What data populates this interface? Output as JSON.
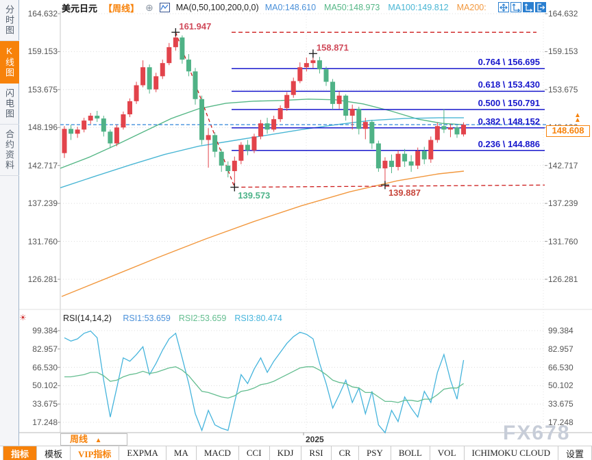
{
  "header": {
    "symbol": "美元日元",
    "period_tag": "【周线】",
    "ma_label": "MA(0,50,100,200,0,0)",
    "ma_values": [
      {
        "label": "MA0:148.610",
        "color": "#4a90d9"
      },
      {
        "label": "MA50:148.973",
        "color": "#55b786"
      },
      {
        "label": "MA100:149.812",
        "color": "#49b6d4"
      },
      {
        "label": "MA200:",
        "color": "#f2983e"
      }
    ],
    "window_buttons": [
      "pan-tool-button",
      "axis-range-button",
      "axis-scale-button",
      "close-panel-button"
    ]
  },
  "icons": {
    "add_indicator": "⊕",
    "rsi_marker": "☀",
    "up_arrow": "▲"
  },
  "sidebar": {
    "items": [
      {
        "label": "分时图",
        "active": false
      },
      {
        "label": "K线图",
        "active": true
      },
      {
        "label": "闪电图",
        "active": false
      },
      {
        "label": "合约资料",
        "active": false
      }
    ]
  },
  "colors": {
    "accent_orange": "#f7820a",
    "candle_up": "#e2434b",
    "candle_down": "#4fb286",
    "fib_blue": "#1717cc",
    "price_dash_blue": "#2f86d8",
    "drawing_red": "#cc1a1a"
  },
  "chart_data": {
    "type": "candlestick",
    "symbol": "美元日元",
    "period": "周线",
    "price_axis": {
      "ticks": [
        164.632,
        159.153,
        153.675,
        148.196,
        142.717,
        137.239,
        131.76,
        126.281
      ]
    },
    "x_axis": {
      "year_label": "2025"
    },
    "candles": [
      [
        144.5,
        148.4,
        143.8,
        148.0
      ],
      [
        148.0,
        148.6,
        146.4,
        147.3
      ],
      [
        147.3,
        148.3,
        146.7,
        147.9
      ],
      [
        147.9,
        149.6,
        147.5,
        149.2
      ],
      [
        149.2,
        150.3,
        148.7,
        149.9
      ],
      [
        149.9,
        150.6,
        149.0,
        149.5
      ],
      [
        149.5,
        149.9,
        146.9,
        147.6
      ],
      [
        147.6,
        147.9,
        145.2,
        145.9
      ],
      [
        145.9,
        148.6,
        145.5,
        148.2
      ],
      [
        148.2,
        150.5,
        147.9,
        150.1
      ],
      [
        150.1,
        152.4,
        149.7,
        152.0
      ],
      [
        152.0,
        154.8,
        151.6,
        154.3
      ],
      [
        154.3,
        157.9,
        154.0,
        156.9
      ],
      [
        156.9,
        157.3,
        153.1,
        153.7
      ],
      [
        153.7,
        156.1,
        153.3,
        155.6
      ],
      [
        155.6,
        158.0,
        155.2,
        157.5
      ],
      [
        157.5,
        160.4,
        157.2,
        159.8
      ],
      [
        159.8,
        161.947,
        159.3,
        161.2
      ],
      [
        161.2,
        161.5,
        157.4,
        158.0
      ],
      [
        158.0,
        158.8,
        155.6,
        156.3
      ],
      [
        156.3,
        156.8,
        151.5,
        152.3
      ],
      [
        152.3,
        152.8,
        145.7,
        146.4
      ],
      [
        146.4,
        148.1,
        142.4,
        147.1
      ],
      [
        147.1,
        147.5,
        143.9,
        144.7
      ],
      [
        144.7,
        145.1,
        141.8,
        142.7
      ],
      [
        142.7,
        143.3,
        141.0,
        141.9
      ],
      [
        141.9,
        144.0,
        139.573,
        143.4
      ],
      [
        143.4,
        146.1,
        142.9,
        145.7
      ],
      [
        145.7,
        146.4,
        144.2,
        144.9
      ],
      [
        144.9,
        147.3,
        144.5,
        146.9
      ],
      [
        146.9,
        149.3,
        146.5,
        148.8
      ],
      [
        148.8,
        149.6,
        147.3,
        147.9
      ],
      [
        147.9,
        149.9,
        147.6,
        149.4
      ],
      [
        149.4,
        151.4,
        149.0,
        151.0
      ],
      [
        151.0,
        153.3,
        150.6,
        152.9
      ],
      [
        152.9,
        155.4,
        152.5,
        154.9
      ],
      [
        154.9,
        157.6,
        154.6,
        156.9
      ],
      [
        156.9,
        158.3,
        156.3,
        157.5
      ],
      [
        157.5,
        158.871,
        156.8,
        157.9
      ],
      [
        157.9,
        158.4,
        156.0,
        156.6
      ],
      [
        156.6,
        157.0,
        154.2,
        154.8
      ],
      [
        154.8,
        155.2,
        150.8,
        151.6
      ],
      [
        151.6,
        153.4,
        150.9,
        152.8
      ],
      [
        152.8,
        153.0,
        149.2,
        149.9
      ],
      [
        149.9,
        151.5,
        147.9,
        150.9
      ],
      [
        150.9,
        151.2,
        147.2,
        148.0
      ],
      [
        148.0,
        149.6,
        146.5,
        149.0
      ],
      [
        149.0,
        149.3,
        145.1,
        145.9
      ],
      [
        145.9,
        146.3,
        141.8,
        142.3
      ],
      [
        142.3,
        143.9,
        139.887,
        143.4
      ],
      [
        143.4,
        144.3,
        141.6,
        142.5
      ],
      [
        142.5,
        144.9,
        142.0,
        144.4
      ],
      [
        144.4,
        145.1,
        142.5,
        143.3
      ],
      [
        143.3,
        144.2,
        141.8,
        142.7
      ],
      [
        142.7,
        145.3,
        142.2,
        144.8
      ],
      [
        144.8,
        145.4,
        142.9,
        143.6
      ],
      [
        143.6,
        146.9,
        143.1,
        146.4
      ],
      [
        146.4,
        148.9,
        146.0,
        148.4
      ],
      [
        148.4,
        150.9,
        147.4,
        147.9
      ],
      [
        147.9,
        148.7,
        146.8,
        148.2
      ],
      [
        148.2,
        148.5,
        146.7,
        147.2
      ],
      [
        147.2,
        148.95,
        146.9,
        148.608
      ]
    ],
    "moving_averages": [
      {
        "name": "MA50",
        "color": "#55b786",
        "points": [
          [
            88,
            142.3
          ],
          [
            130,
            143.9
          ],
          [
            170,
            145.7
          ],
          [
            210,
            147.6
          ],
          [
            250,
            149.5
          ],
          [
            290,
            150.9
          ],
          [
            330,
            151.7
          ],
          [
            370,
            152.0
          ],
          [
            410,
            152.1
          ],
          [
            450,
            152.3
          ],
          [
            490,
            152.2
          ],
          [
            530,
            151.6
          ],
          [
            570,
            150.6
          ],
          [
            610,
            149.4
          ],
          [
            645,
            148.8
          ],
          [
            677,
            148.6
          ]
        ]
      },
      {
        "name": "MA100",
        "color": "#49b6d4",
        "points": [
          [
            88,
            139.5
          ],
          [
            140,
            141.2
          ],
          [
            190,
            142.8
          ],
          [
            240,
            144.3
          ],
          [
            290,
            145.5
          ],
          [
            340,
            146.3
          ],
          [
            390,
            147.1
          ],
          [
            440,
            147.9
          ],
          [
            490,
            148.6
          ],
          [
            540,
            149.2
          ],
          [
            590,
            149.5
          ],
          [
            640,
            149.6
          ],
          [
            677,
            149.6
          ]
        ]
      },
      {
        "name": "MA200",
        "color": "#f2983e",
        "points": [
          [
            90,
            123.8
          ],
          [
            160,
            126.6
          ],
          [
            230,
            129.4
          ],
          [
            300,
            132.1
          ],
          [
            370,
            134.6
          ],
          [
            440,
            136.9
          ],
          [
            510,
            138.9
          ],
          [
            580,
            140.5
          ],
          [
            640,
            141.5
          ],
          [
            677,
            141.9
          ]
        ]
      }
    ],
    "fib_levels": [
      {
        "label": "0.764 \\ 156.695",
        "ratio": 0.764,
        "price": 156.695
      },
      {
        "label": "0.618 \\ 153.430",
        "ratio": 0.618,
        "price": 153.43
      },
      {
        "label": "0.500 \\ 150.791",
        "ratio": 0.5,
        "price": 150.791
      },
      {
        "label": "0.382 \\ 148.152",
        "ratio": 0.382,
        "price": 148.152
      },
      {
        "label": "0.236 \\ 144.886",
        "ratio": 0.236,
        "price": 144.886
      }
    ],
    "range_lines": {
      "top_price": 161.947,
      "bottom_left_price": 139.573,
      "bottom_right_price": 139.887
    },
    "trendline": {
      "from_candle": 17,
      "from_price": 161.947,
      "to_candle": 26,
      "to_price": 139.573
    },
    "annotations": [
      {
        "text": "161.947",
        "price": 161.947,
        "candle": 17,
        "color": "#d04a5a",
        "pos": "above"
      },
      {
        "text": "158.871",
        "price": 158.871,
        "candle": 38,
        "color": "#d04a5a",
        "pos": "above"
      },
      {
        "text": "139.573",
        "price": 139.573,
        "candle": 26,
        "color": "#4db389",
        "pos": "below"
      },
      {
        "text": "139.887",
        "price": 139.887,
        "candle": 49,
        "color": "#c8473c",
        "pos": "below"
      }
    ],
    "current_price": {
      "value": "148.608",
      "price": 148.608
    },
    "rsi": {
      "label": "RSI(14,14,2)",
      "legend": [
        {
          "label": "RSI1:53.659",
          "color": "#4a90d9"
        },
        {
          "label": "RSI2:53.659",
          "color": "#63bd8f"
        },
        {
          "label": "RSI3:80.474",
          "color": "#45b4dc"
        }
      ],
      "axis_ticks": [
        99.384,
        82.957,
        66.53,
        50.102,
        33.675,
        17.248
      ],
      "series1": [
        93,
        90,
        92,
        97,
        99,
        93,
        55,
        22,
        48,
        75,
        72,
        78,
        85,
        60,
        70,
        82,
        92,
        97,
        75,
        52,
        25,
        10,
        28,
        15,
        12,
        10,
        35,
        60,
        52,
        65,
        75,
        62,
        72,
        80,
        88,
        94,
        98,
        96,
        92,
        70,
        52,
        30,
        42,
        55,
        35,
        48,
        25,
        45,
        15,
        8,
        28,
        18,
        40,
        30,
        22,
        45,
        35,
        62,
        78,
        55,
        38,
        73
      ],
      "series2": [
        58,
        58,
        59,
        60,
        62,
        62,
        59,
        54,
        55,
        58,
        60,
        61,
        63,
        61,
        62,
        64,
        66,
        67,
        64,
        59,
        52,
        45,
        44,
        42,
        40,
        39,
        41,
        45,
        46,
        48,
        51,
        52,
        54,
        57,
        60,
        63,
        66,
        67,
        67,
        64,
        60,
        55,
        53,
        52,
        49,
        48,
        44,
        44,
        40,
        36,
        36,
        35,
        37,
        37,
        36,
        38,
        38,
        42,
        47,
        48,
        48,
        52
      ]
    }
  },
  "footer": {
    "period_tab_label": "周线",
    "period_tab_arrow": "▲"
  },
  "toolbar": {
    "items": [
      {
        "label": "指标",
        "style": "active"
      },
      {
        "label": "模板",
        "style": ""
      },
      {
        "label": "VIP指标",
        "style": "vip"
      },
      {
        "label": "EXPMA",
        "style": ""
      },
      {
        "label": "MA",
        "style": ""
      },
      {
        "label": "MACD",
        "style": ""
      },
      {
        "label": "CCI",
        "style": ""
      },
      {
        "label": "KDJ",
        "style": ""
      },
      {
        "label": "RSI",
        "style": ""
      },
      {
        "label": "CR",
        "style": ""
      },
      {
        "label": "PSY",
        "style": ""
      },
      {
        "label": "BOLL",
        "style": ""
      },
      {
        "label": "VOL",
        "style": ""
      },
      {
        "label": "ICHIMOKU CLOUD",
        "style": ""
      },
      {
        "label": "设置",
        "style": ""
      }
    ]
  },
  "watermark": "FX678"
}
